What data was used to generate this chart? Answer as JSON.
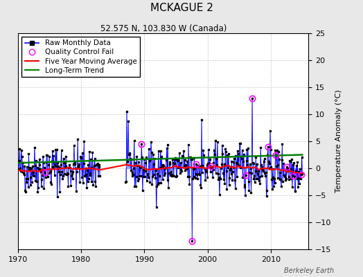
{
  "title": "MCKAGUE 2",
  "subtitle": "52.575 N, 103.830 W (Canada)",
  "ylabel": "Temperature Anomaly (°C)",
  "watermark": "Berkeley Earth",
  "xlim": [
    1970,
    2016
  ],
  "ylim": [
    -15,
    25
  ],
  "yticks": [
    -15,
    -10,
    -5,
    0,
    5,
    10,
    15,
    20,
    25
  ],
  "xticks": [
    1970,
    1980,
    1990,
    2000,
    2010
  ],
  "bg_color": "#e8e8e8",
  "plot_bg_color": "#ffffff",
  "grid_color": "#c8c8c8",
  "seed": 42
}
